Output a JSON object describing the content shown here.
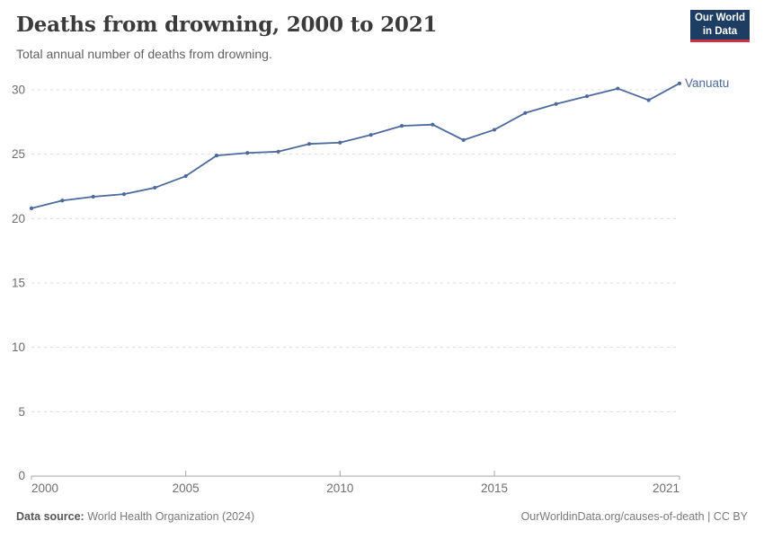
{
  "header": {
    "title": "Deaths from drowning, 2000 to 2021",
    "subtitle": "Total annual number of deaths from drowning."
  },
  "logo": {
    "line1": "Our World",
    "line2": "in Data"
  },
  "colors": {
    "title_text": "#3b3b3b",
    "subtitle_text": "#616161",
    "tick_text": "#6e6e6e",
    "grid": "#dcdcdc",
    "axis": "#a5a5a5",
    "line": "#4c6a9c",
    "logo_bg": "#1d3d63",
    "logo_accent": "#d12e43"
  },
  "chart_data": {
    "type": "line",
    "title": "Deaths from drowning, 2000 to 2021",
    "subtitle": "Total annual number of deaths from drowning.",
    "xlabel": "",
    "ylabel": "",
    "x": [
      2000,
      2001,
      2002,
      2003,
      2004,
      2005,
      2006,
      2007,
      2008,
      2009,
      2010,
      2011,
      2012,
      2013,
      2014,
      2015,
      2016,
      2017,
      2018,
      2019,
      2020,
      2021
    ],
    "series": [
      {
        "name": "Vanuatu",
        "color": "#4c6a9c",
        "values": [
          20.8,
          21.4,
          21.7,
          21.9,
          22.4,
          23.3,
          24.9,
          25.1,
          25.2,
          25.8,
          25.9,
          26.5,
          27.2,
          27.3,
          26.1,
          26.9,
          28.2,
          28.9,
          29.5,
          30.1,
          29.2,
          30.5
        ]
      }
    ],
    "ylim": [
      0,
      30
    ],
    "yticks": [
      0,
      5,
      10,
      15,
      20,
      25,
      30
    ],
    "xticks": [
      2000,
      2005,
      2010,
      2015,
      2021
    ],
    "grid": "horizontal-dashed",
    "legend": "entity-label-at-line-end"
  },
  "footer": {
    "source_label": "Data source:",
    "source_value": " World Health Organization (2024)",
    "credit": "OurWorldinData.org/causes-of-death | CC BY"
  }
}
